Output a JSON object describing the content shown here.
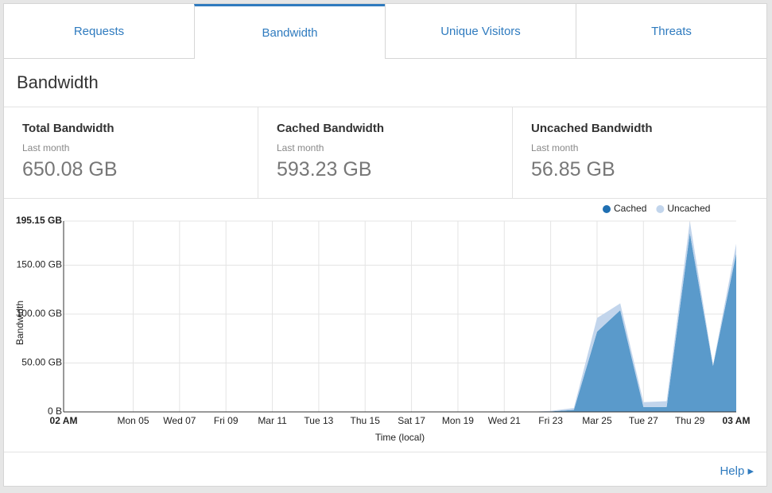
{
  "tabs": [
    "Requests",
    "Bandwidth",
    "Unique Visitors",
    "Threats"
  ],
  "section_title": "Bandwidth",
  "stats": [
    {
      "title": "Total Bandwidth",
      "period": "Last month",
      "value": "650.08 GB"
    },
    {
      "title": "Cached Bandwidth",
      "period": "Last month",
      "value": "593.23 GB"
    },
    {
      "title": "Uncached Bandwidth",
      "period": "Last month",
      "value": "56.85 GB"
    }
  ],
  "help": "Help",
  "chart_data": {
    "type": "stacked-area",
    "y_label": "Bandwidth",
    "x_label": "Time (local)",
    "categories": [
      "02 AM",
      null,
      null,
      "Mon 05",
      null,
      "Wed 07",
      null,
      "Fri 09",
      null,
      "Mar 11",
      null,
      "Tue 13",
      null,
      "Thu 15",
      null,
      "Sat 17",
      null,
      "Mon 19",
      null,
      "Wed 21",
      null,
      "Fri 23",
      null,
      "Mar 25",
      null,
      "Tue 27",
      null,
      "Thu 29",
      null,
      "03 AM"
    ],
    "series": [
      {
        "name": "Cached",
        "color": "#5a9acb",
        "values": [
          0,
          0,
          0,
          0,
          0,
          0,
          0,
          0,
          0,
          0,
          0,
          0,
          0,
          0,
          0,
          0,
          0,
          0,
          0,
          0,
          0,
          0.5,
          2,
          82,
          104,
          5,
          5,
          183,
          47,
          162
        ]
      },
      {
        "name": "Uncached",
        "color": "#c2d5ec",
        "values": [
          0,
          0,
          0,
          0,
          0,
          0,
          0,
          0,
          0,
          0,
          0,
          0,
          0,
          0,
          0,
          0,
          0,
          0,
          0,
          0,
          0,
          0.5,
          2,
          14,
          7,
          5,
          6,
          12,
          1,
          10
        ]
      }
    ],
    "ylim": [
      0,
      195.15
    ],
    "yticks": [
      {
        "value": 0,
        "label": "0 B"
      },
      {
        "value": 50,
        "label": "50.00 GB"
      },
      {
        "value": 100,
        "label": "100.00 GB"
      },
      {
        "value": 150,
        "label": "150.00 GB"
      },
      {
        "value": 195.15,
        "label": "195.15 GB"
      }
    ],
    "grid": true,
    "legend": "top-right"
  }
}
